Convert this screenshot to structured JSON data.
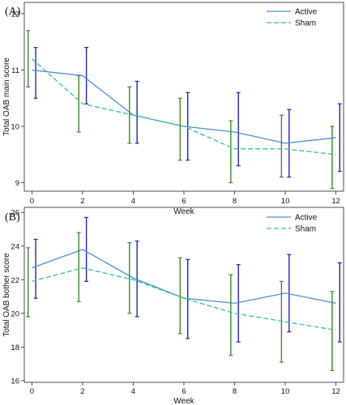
{
  "chart_data": [
    {
      "type": "line",
      "panel_label": "(A)",
      "xlabel": "Week",
      "ylabel": "Total OAB main score",
      "x": [
        0,
        2,
        4,
        6,
        8,
        10,
        12
      ],
      "x_ticks": [
        "0",
        "2",
        "4",
        "6",
        "8",
        "10",
        "12"
      ],
      "xlim": [
        -0.3,
        12.3
      ],
      "y_ticks": [
        "9",
        "10",
        "11",
        "12"
      ],
      "ylim": [
        8.85,
        12.2
      ],
      "grid": false,
      "legend_position": "top-right",
      "series": [
        {
          "name": "Active",
          "style": "solid",
          "color": "#4a90d9",
          "values": [
            11.0,
            10.9,
            10.2,
            10.0,
            9.9,
            9.7,
            9.8
          ],
          "ci_low": [
            10.5,
            10.4,
            9.7,
            9.4,
            9.3,
            9.1,
            9.2
          ],
          "ci_high": [
            11.4,
            11.4,
            10.8,
            10.6,
            10.6,
            10.3,
            10.4
          ],
          "ci_color": "#2222bb"
        },
        {
          "name": "Sham",
          "style": "dashed",
          "color": "#2ec4a0",
          "values": [
            11.2,
            10.4,
            10.2,
            10.0,
            9.6,
            9.6,
            9.5
          ],
          "ci_low": [
            10.7,
            9.9,
            9.7,
            9.4,
            9.0,
            9.1,
            8.9
          ],
          "ci_high": [
            11.7,
            10.9,
            10.7,
            10.5,
            10.1,
            10.2,
            10.0
          ],
          "ci_color": "#3a8a2a"
        }
      ]
    },
    {
      "type": "line",
      "panel_label": "(B)",
      "xlabel": "Week",
      "ylabel": "Total OAB bother score",
      "x": [
        0,
        2,
        4,
        6,
        8,
        10,
        12
      ],
      "x_ticks": [
        "0",
        "2",
        "4",
        "6",
        "8",
        "10",
        "12"
      ],
      "xlim": [
        -0.3,
        12.3
      ],
      "y_ticks": [
        "16",
        "18",
        "20",
        "22",
        "24",
        "26"
      ],
      "ylim": [
        15.9,
        26.3
      ],
      "grid": false,
      "legend_position": "top-right",
      "series": [
        {
          "name": "Active",
          "style": "solid",
          "color": "#4a90d9",
          "values": [
            22.7,
            23.8,
            22.1,
            20.9,
            20.6,
            21.2,
            20.6
          ],
          "ci_low": [
            20.9,
            21.9,
            19.8,
            18.5,
            18.3,
            18.9,
            18.3
          ],
          "ci_high": [
            24.4,
            25.7,
            24.3,
            23.2,
            22.9,
            23.5,
            23.0
          ],
          "ci_color": "#2222bb"
        },
        {
          "name": "Sham",
          "style": "dashed",
          "color": "#2ec4a0",
          "values": [
            21.9,
            22.7,
            22.0,
            20.9,
            20.0,
            19.5,
            19.0
          ],
          "ci_low": [
            19.8,
            20.7,
            20.0,
            18.8,
            17.5,
            17.1,
            16.6
          ],
          "ci_high": [
            23.9,
            24.8,
            24.2,
            23.3,
            22.3,
            21.9,
            21.3
          ],
          "ci_color": "#3a8a2a"
        }
      ]
    }
  ]
}
